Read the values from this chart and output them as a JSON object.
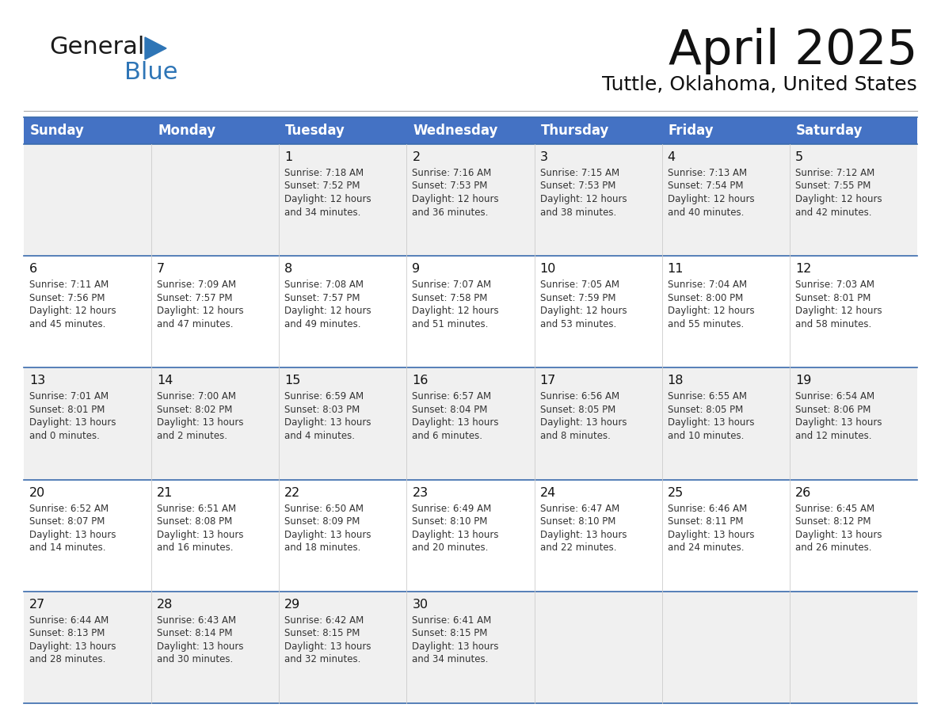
{
  "title": "April 2025",
  "subtitle": "Tuttle, Oklahoma, United States",
  "header_bg": "#4472C4",
  "header_text": "#FFFFFF",
  "header_days": [
    "Sunday",
    "Monday",
    "Tuesday",
    "Wednesday",
    "Thursday",
    "Friday",
    "Saturday"
  ],
  "row_bg_odd": "#F0F0F0",
  "row_bg_even": "#FFFFFF",
  "cell_text_color": "#333333",
  "day_number_color": "#111111",
  "border_color": "#3A6BAD",
  "logo_black": "#1a1a1a",
  "logo_blue": "#2E75B6",
  "weeks": [
    [
      {
        "day": "",
        "sunrise": "",
        "sunset": "",
        "daylight": ""
      },
      {
        "day": "",
        "sunrise": "",
        "sunset": "",
        "daylight": ""
      },
      {
        "day": "1",
        "sunrise": "7:18 AM",
        "sunset": "7:52 PM",
        "daylight": "12 hours and 34 minutes."
      },
      {
        "day": "2",
        "sunrise": "7:16 AM",
        "sunset": "7:53 PM",
        "daylight": "12 hours and 36 minutes."
      },
      {
        "day": "3",
        "sunrise": "7:15 AM",
        "sunset": "7:53 PM",
        "daylight": "12 hours and 38 minutes."
      },
      {
        "day": "4",
        "sunrise": "7:13 AM",
        "sunset": "7:54 PM",
        "daylight": "12 hours and 40 minutes."
      },
      {
        "day": "5",
        "sunrise": "7:12 AM",
        "sunset": "7:55 PM",
        "daylight": "12 hours and 42 minutes."
      }
    ],
    [
      {
        "day": "6",
        "sunrise": "7:11 AM",
        "sunset": "7:56 PM",
        "daylight": "12 hours and 45 minutes."
      },
      {
        "day": "7",
        "sunrise": "7:09 AM",
        "sunset": "7:57 PM",
        "daylight": "12 hours and 47 minutes."
      },
      {
        "day": "8",
        "sunrise": "7:08 AM",
        "sunset": "7:57 PM",
        "daylight": "12 hours and 49 minutes."
      },
      {
        "day": "9",
        "sunrise": "7:07 AM",
        "sunset": "7:58 PM",
        "daylight": "12 hours and 51 minutes."
      },
      {
        "day": "10",
        "sunrise": "7:05 AM",
        "sunset": "7:59 PM",
        "daylight": "12 hours and 53 minutes."
      },
      {
        "day": "11",
        "sunrise": "7:04 AM",
        "sunset": "8:00 PM",
        "daylight": "12 hours and 55 minutes."
      },
      {
        "day": "12",
        "sunrise": "7:03 AM",
        "sunset": "8:01 PM",
        "daylight": "12 hours and 58 minutes."
      }
    ],
    [
      {
        "day": "13",
        "sunrise": "7:01 AM",
        "sunset": "8:01 PM",
        "daylight": "13 hours and 0 minutes."
      },
      {
        "day": "14",
        "sunrise": "7:00 AM",
        "sunset": "8:02 PM",
        "daylight": "13 hours and 2 minutes."
      },
      {
        "day": "15",
        "sunrise": "6:59 AM",
        "sunset": "8:03 PM",
        "daylight": "13 hours and 4 minutes."
      },
      {
        "day": "16",
        "sunrise": "6:57 AM",
        "sunset": "8:04 PM",
        "daylight": "13 hours and 6 minutes."
      },
      {
        "day": "17",
        "sunrise": "6:56 AM",
        "sunset": "8:05 PM",
        "daylight": "13 hours and 8 minutes."
      },
      {
        "day": "18",
        "sunrise": "6:55 AM",
        "sunset": "8:05 PM",
        "daylight": "13 hours and 10 minutes."
      },
      {
        "day": "19",
        "sunrise": "6:54 AM",
        "sunset": "8:06 PM",
        "daylight": "13 hours and 12 minutes."
      }
    ],
    [
      {
        "day": "20",
        "sunrise": "6:52 AM",
        "sunset": "8:07 PM",
        "daylight": "13 hours and 14 minutes."
      },
      {
        "day": "21",
        "sunrise": "6:51 AM",
        "sunset": "8:08 PM",
        "daylight": "13 hours and 16 minutes."
      },
      {
        "day": "22",
        "sunrise": "6:50 AM",
        "sunset": "8:09 PM",
        "daylight": "13 hours and 18 minutes."
      },
      {
        "day": "23",
        "sunrise": "6:49 AM",
        "sunset": "8:10 PM",
        "daylight": "13 hours and 20 minutes."
      },
      {
        "day": "24",
        "sunrise": "6:47 AM",
        "sunset": "8:10 PM",
        "daylight": "13 hours and 22 minutes."
      },
      {
        "day": "25",
        "sunrise": "6:46 AM",
        "sunset": "8:11 PM",
        "daylight": "13 hours and 24 minutes."
      },
      {
        "day": "26",
        "sunrise": "6:45 AM",
        "sunset": "8:12 PM",
        "daylight": "13 hours and 26 minutes."
      }
    ],
    [
      {
        "day": "27",
        "sunrise": "6:44 AM",
        "sunset": "8:13 PM",
        "daylight": "13 hours and 28 minutes."
      },
      {
        "day": "28",
        "sunrise": "6:43 AM",
        "sunset": "8:14 PM",
        "daylight": "13 hours and 30 minutes."
      },
      {
        "day": "29",
        "sunrise": "6:42 AM",
        "sunset": "8:15 PM",
        "daylight": "13 hours and 32 minutes."
      },
      {
        "day": "30",
        "sunrise": "6:41 AM",
        "sunset": "8:15 PM",
        "daylight": "13 hours and 34 minutes."
      },
      {
        "day": "",
        "sunrise": "",
        "sunset": "",
        "daylight": ""
      },
      {
        "day": "",
        "sunrise": "",
        "sunset": "",
        "daylight": ""
      },
      {
        "day": "",
        "sunrise": "",
        "sunset": "",
        "daylight": ""
      }
    ]
  ]
}
